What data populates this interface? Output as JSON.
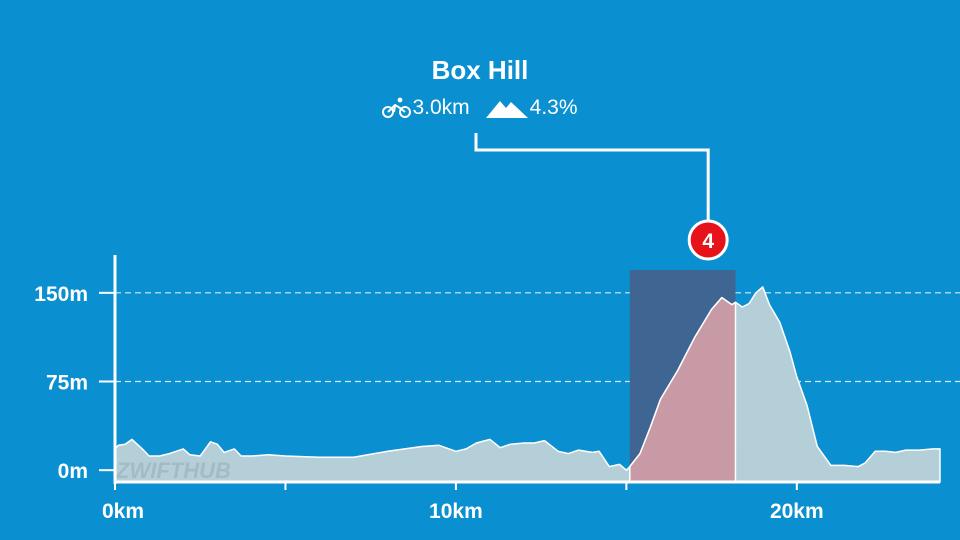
{
  "segment": {
    "name": "Box Hill",
    "distance": "3.0km",
    "gradient": "4.3%",
    "marker": "4",
    "distance_icon": "cyclist-icon",
    "gradient_icon": "mountain-icon"
  },
  "watermark": "ZWIFTHUB",
  "colors": {
    "background": "#0a8fd0",
    "profile_fill": "#b5cfd9",
    "segment_fill": "#c79aa6",
    "highlight": "#3f6592",
    "marker": "#e6141a"
  },
  "chart_data": {
    "type": "area",
    "title": "",
    "xlabel": "",
    "ylabel": "",
    "x_ticks": [
      "0km",
      "10km",
      "20km"
    ],
    "x_tick_values": [
      0,
      10,
      20
    ],
    "y_ticks": [
      "0m",
      "75m",
      "150m"
    ],
    "y_tick_values": [
      0,
      75,
      150
    ],
    "xlim": [
      0,
      24.2
    ],
    "ylim": [
      -10,
      182
    ],
    "grid": "horizontal dashed",
    "highlight": {
      "name": "Box Hill",
      "start_km": 15.1,
      "end_km": 18.2,
      "marker_km": 17.4
    },
    "series": [
      {
        "x": [
          0,
          0.1,
          0.3,
          0.5,
          0.8,
          1.0,
          1.3,
          1.6,
          2.0,
          2.2,
          2.5,
          2.8,
          3.0,
          3.2,
          3.5,
          3.7,
          4.0,
          4.5,
          5.0,
          6.0,
          7.0,
          8.0,
          9.0,
          9.5,
          10.0,
          10.3,
          10.6,
          11.0,
          11.3,
          11.6,
          12.0,
          12.3,
          12.6,
          13.0,
          13.3,
          13.6,
          14.0,
          14.2,
          14.5,
          14.8,
          15.0,
          15.1,
          15.4,
          15.7,
          16.0,
          16.5,
          17.0,
          17.5,
          17.8,
          18.1,
          18.2,
          18.4,
          18.6,
          18.8,
          19.0,
          19.2,
          19.5,
          19.8,
          20.0,
          20.3,
          20.6,
          21.0,
          21.4,
          21.8,
          22.0,
          22.3,
          22.6,
          22.9,
          23.2,
          23.6,
          24.0,
          24.2
        ],
        "y": [
          18,
          21,
          22,
          26,
          18,
          12,
          12,
          14,
          18,
          13,
          12,
          24,
          22,
          15,
          18,
          12,
          12,
          13,
          12,
          11,
          11,
          16,
          20,
          21,
          16,
          18,
          23,
          26,
          19,
          22,
          23,
          23,
          25,
          16,
          14,
          17,
          15,
          16,
          3,
          5,
          0,
          3,
          14,
          36,
          60,
          84,
          112,
          136,
          146,
          140,
          142,
          138,
          141,
          150,
          155,
          140,
          125,
          100,
          79,
          55,
          20,
          4,
          4,
          3,
          6,
          16,
          16,
          15,
          17,
          17,
          18,
          18
        ]
      }
    ]
  }
}
